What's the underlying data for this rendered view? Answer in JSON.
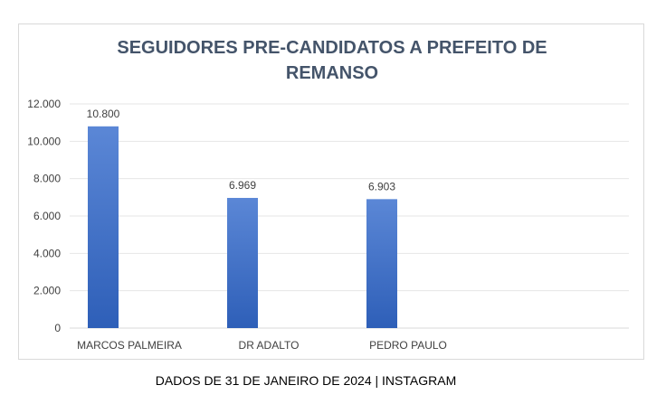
{
  "chart_data": {
    "type": "bar",
    "title_lines": [
      "SEGUIDORES PRE-CANDIDATOS A PREFEITO DE",
      "REMANSO"
    ],
    "categories": [
      "MARCOS PALMEIRA",
      "DR ADALTO",
      "PEDRO PAULO"
    ],
    "series": [
      {
        "values": [
          10800,
          6969,
          6903
        ],
        "data_labels": [
          "10.800",
          "6.969",
          "6.903"
        ]
      }
    ],
    "ylim": [
      0,
      12000
    ],
    "yticks": [
      0,
      2000,
      4000,
      6000,
      8000,
      10000,
      12000
    ],
    "ytick_labels": [
      "0",
      "2.000",
      "4.000",
      "6.000",
      "8.000",
      "10.000",
      "12.000"
    ],
    "grid": true,
    "legend": "none",
    "bar_color_top": "#5b87d6",
    "bar_color_bottom": "#2e5fb8"
  },
  "footer": "DADOS DE 31 DE JANEIRO DE 2024 | INSTAGRAM"
}
